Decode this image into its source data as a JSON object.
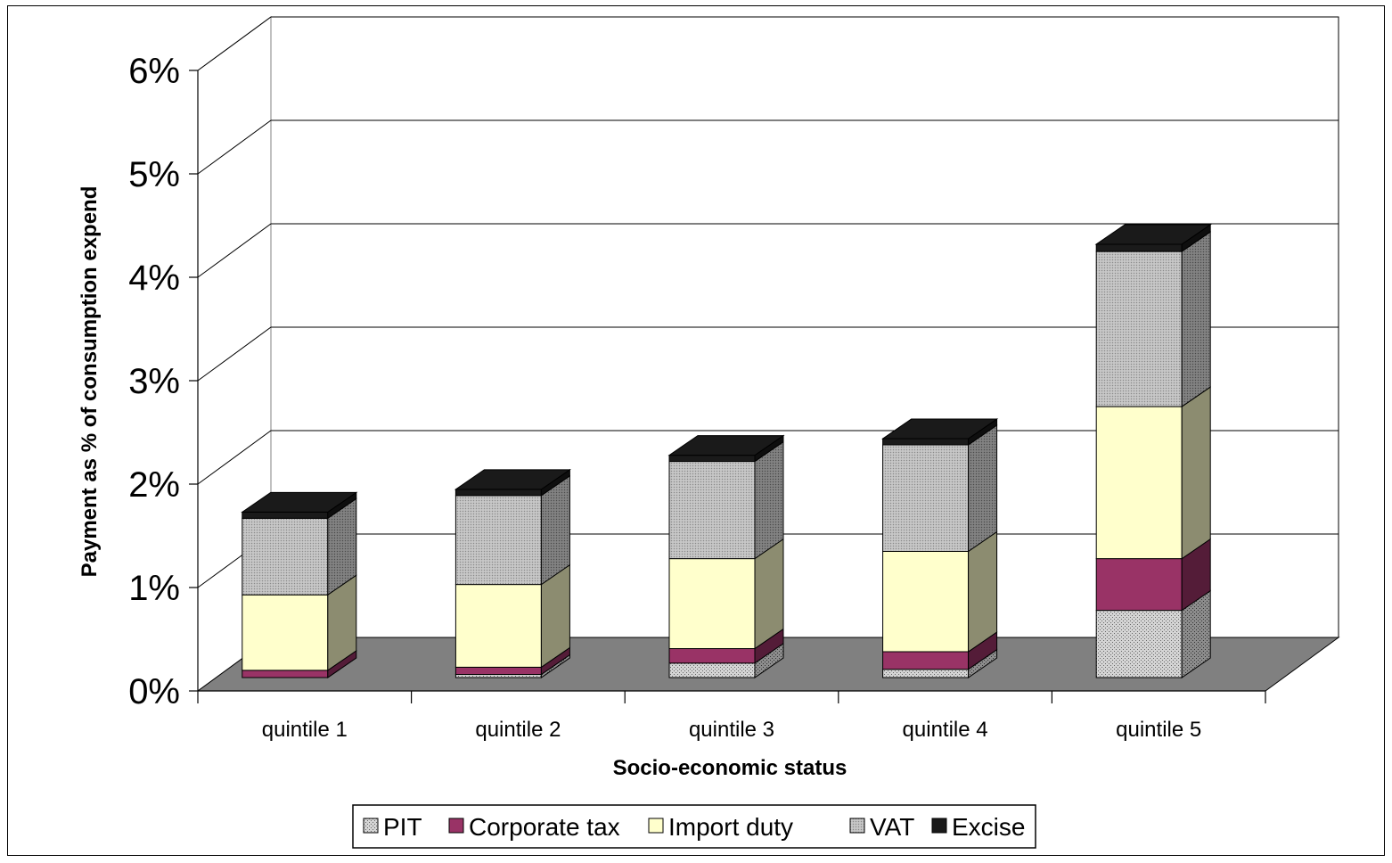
{
  "chart_data": {
    "type": "bar",
    "stacked": true,
    "three_d": true,
    "title": "",
    "xlabel": "Socio-economic status",
    "ylabel": "Payment as % of consumption expend",
    "categories": [
      "quintile 1",
      "quintile 2",
      "quintile 3",
      "quintile 4",
      "quintile 5"
    ],
    "ylim": [
      0,
      6
    ],
    "yticks": [
      "0%",
      "1%",
      "2%",
      "3%",
      "4%",
      "5%",
      "6%"
    ],
    "grid": true,
    "legend_position": "bottom",
    "series": [
      {
        "name": "PIT",
        "values": [
          0.0,
          0.03,
          0.14,
          0.08,
          0.65
        ],
        "color": "#c8c8c8",
        "pattern": "hatch"
      },
      {
        "name": "Corporate tax",
        "values": [
          0.07,
          0.07,
          0.14,
          0.17,
          0.5
        ],
        "color": "#993366"
      },
      {
        "name": "Import duty",
        "values": [
          0.73,
          0.8,
          0.87,
          0.97,
          1.47
        ],
        "color": "#ffffcc"
      },
      {
        "name": "VAT",
        "values": [
          0.74,
          0.86,
          0.94,
          1.03,
          1.5
        ],
        "color": "#b0b0b0",
        "pattern": "fine"
      },
      {
        "name": "Excise",
        "values": [
          0.06,
          0.06,
          0.06,
          0.06,
          0.07
        ],
        "color": "#1a1a1a"
      }
    ],
    "floor_color": "#808080"
  }
}
